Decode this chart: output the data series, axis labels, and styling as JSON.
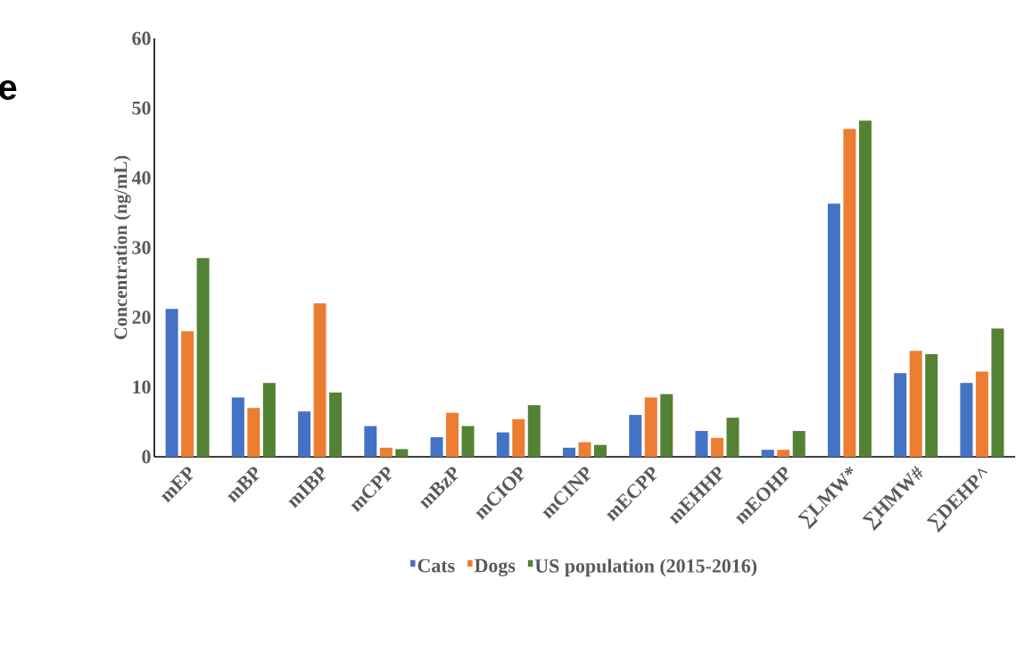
{
  "chart_data": {
    "type": "bar",
    "ylabel": "Concentration (ng/mL)",
    "annotations": [
      "e"
    ],
    "categories": [
      "mEP",
      "mBP",
      "mIBP",
      "mCPP",
      "mBzP",
      "mCIOP",
      "mCINP",
      "mECPP",
      "mEHHP",
      "mEOHP",
      "∑LMW*",
      "∑HMW#",
      "∑DEHP^"
    ],
    "series": [
      {
        "name": "Cats",
        "color": "#4472c4",
        "values": [
          21.2,
          8.5,
          6.5,
          4.4,
          2.8,
          3.5,
          1.3,
          6.0,
          3.7,
          1.0,
          36.3,
          12.0,
          10.6
        ]
      },
      {
        "name": "Dogs",
        "color": "#ed7d31",
        "values": [
          18.0,
          7.0,
          22.0,
          1.3,
          6.3,
          5.4,
          2.1,
          8.5,
          2.7,
          1.0,
          47.0,
          15.2,
          12.2
        ]
      },
      {
        "name": "US population (2015-2016)",
        "color": "#548235",
        "values": [
          28.5,
          10.6,
          9.2,
          1.1,
          4.4,
          7.4,
          1.7,
          9.0,
          5.6,
          3.7,
          48.2,
          14.7,
          18.4
        ]
      }
    ],
    "ylim": [
      0,
      60
    ],
    "yticks": [
      0,
      10,
      20,
      30,
      40,
      50,
      60
    ],
    "legend": "bottom"
  }
}
